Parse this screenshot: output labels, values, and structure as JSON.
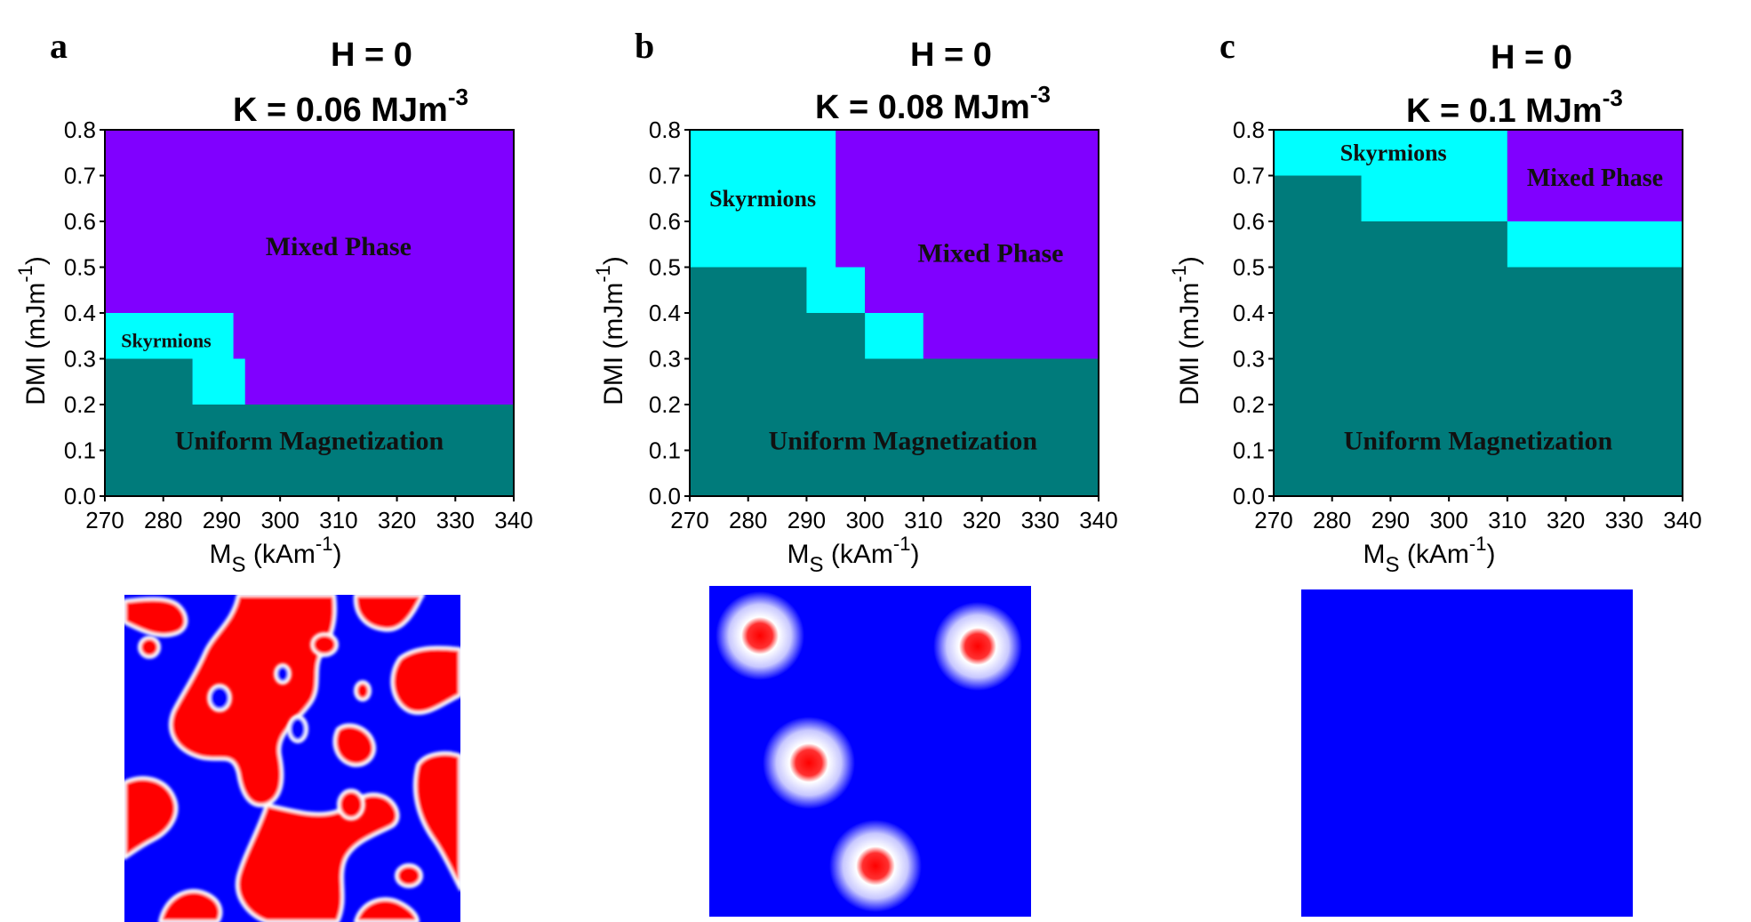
{
  "colors": {
    "uniform": "#007b7b",
    "skyrmions": "#00ffff",
    "mixed": "#8000ff",
    "sim_blue": "#0000ff",
    "sim_red": "#ff0000"
  },
  "chart_data": [
    {
      "type": "heatmap",
      "panel": "a",
      "title_line1": "H = 0",
      "title_line2": "K = 0.06 MJm",
      "title_sup": "-3",
      "xlabel_main": "M",
      "xlabel_sub": "S",
      "xlabel_rest": " (kAm",
      "xlabel_sup": "-1",
      "xlabel_close": ")",
      "ylabel_main": "DMI (mJm",
      "ylabel_sup": "-1",
      "ylabel_close": ")",
      "xlim": [
        270,
        340
      ],
      "ylim": [
        0.0,
        0.8
      ],
      "xticks": [
        "270",
        "280",
        "290",
        "300",
        "310",
        "320",
        "330",
        "340"
      ],
      "yticks": [
        "0.0",
        "0.1",
        "0.2",
        "0.3",
        "0.4",
        "0.5",
        "0.6",
        "0.7",
        "0.8"
      ],
      "regions": [
        {
          "phase": "mixed",
          "x": [
            270,
            340
          ],
          "y": [
            0.2,
            0.8
          ]
        },
        {
          "phase": "uniform",
          "x": [
            270,
            340
          ],
          "y": [
            0.0,
            0.2
          ]
        },
        {
          "phase": "uniform",
          "x": [
            270,
            285
          ],
          "y": [
            0.2,
            0.3
          ]
        },
        {
          "phase": "skyrmions",
          "x": [
            270,
            292
          ],
          "y": [
            0.3,
            0.4
          ]
        },
        {
          "phase": "skyrmions",
          "x": [
            285,
            294
          ],
          "y": [
            0.2,
            0.3
          ]
        }
      ],
      "labels": [
        {
          "text": "Mixed Phase",
          "x": 310,
          "y": 0.54,
          "size": 30
        },
        {
          "text": "Skyrmions",
          "x": 280.5,
          "y": 0.335,
          "size": 22
        },
        {
          "text": "Uniform Magnetization",
          "x": 305,
          "y": 0.115,
          "size": 30
        }
      ],
      "snapshot": "labyrinth"
    },
    {
      "type": "heatmap",
      "panel": "b",
      "title_line1": "H = 0",
      "title_line2": "K = 0.08 MJm",
      "title_sup": "-3",
      "xlabel_main": "M",
      "xlabel_sub": "S",
      "xlabel_rest": " (kAm",
      "xlabel_sup": "-1",
      "xlabel_close": ")",
      "ylabel_main": "DMI (mJm",
      "ylabel_sup": "-1",
      "ylabel_close": ")",
      "xlim": [
        270,
        340
      ],
      "ylim": [
        0.0,
        0.8
      ],
      "xticks": [
        "270",
        "280",
        "290",
        "300",
        "310",
        "320",
        "330",
        "340"
      ],
      "yticks": [
        "0.0",
        "0.1",
        "0.2",
        "0.3",
        "0.4",
        "0.5",
        "0.6",
        "0.7",
        "0.8"
      ],
      "regions": [
        {
          "phase": "uniform",
          "x": [
            270,
            340
          ],
          "y": [
            0.0,
            0.8
          ]
        },
        {
          "phase": "skyrmions",
          "x": [
            270,
            295
          ],
          "y": [
            0.5,
            0.8
          ]
        },
        {
          "phase": "skyrmions",
          "x": [
            290,
            300
          ],
          "y": [
            0.4,
            0.5
          ]
        },
        {
          "phase": "skyrmions",
          "x": [
            300,
            310
          ],
          "y": [
            0.3,
            0.4
          ]
        },
        {
          "phase": "mixed",
          "x": [
            295,
            340
          ],
          "y": [
            0.5,
            0.8
          ]
        },
        {
          "phase": "mixed",
          "x": [
            300,
            340
          ],
          "y": [
            0.4,
            0.5
          ]
        },
        {
          "phase": "mixed",
          "x": [
            310,
            340
          ],
          "y": [
            0.3,
            0.4
          ]
        }
      ],
      "labels": [
        {
          "text": "Mixed Phase",
          "x": 321.5,
          "y": 0.525,
          "size": 30
        },
        {
          "text": "Skyrmions",
          "x": 282.5,
          "y": 0.645,
          "size": 26
        },
        {
          "text": "Uniform Magnetization",
          "x": 306.5,
          "y": 0.115,
          "size": 30
        }
      ],
      "snapshot": "skyrmions"
    },
    {
      "type": "heatmap",
      "panel": "c",
      "title_line1": "H = 0",
      "title_line2": "K = 0.1 MJm",
      "title_sup": "-3",
      "xlabel_main": "M",
      "xlabel_sub": "S",
      "xlabel_rest": " (kAm",
      "xlabel_sup": "-1",
      "xlabel_close": ")",
      "ylabel_main": "DMI (mJm",
      "ylabel_sup": "-1",
      "ylabel_close": ")",
      "xlim": [
        270,
        340
      ],
      "ylim": [
        0.0,
        0.8
      ],
      "xticks": [
        "270",
        "280",
        "290",
        "300",
        "310",
        "320",
        "330",
        "340"
      ],
      "yticks": [
        "0.0",
        "0.1",
        "0.2",
        "0.3",
        "0.4",
        "0.5",
        "0.6",
        "0.7",
        "0.8"
      ],
      "regions": [
        {
          "phase": "uniform",
          "x": [
            270,
            340
          ],
          "y": [
            0.0,
            0.8
          ]
        },
        {
          "phase": "skyrmions",
          "x": [
            270,
            310
          ],
          "y": [
            0.7,
            0.8
          ]
        },
        {
          "phase": "skyrmions",
          "x": [
            285,
            310
          ],
          "y": [
            0.6,
            0.7
          ]
        },
        {
          "phase": "mixed",
          "x": [
            310,
            340
          ],
          "y": [
            0.6,
            0.8
          ]
        },
        {
          "phase": "skyrmions",
          "x": [
            310,
            340
          ],
          "y": [
            0.5,
            0.6
          ]
        }
      ],
      "labels": [
        {
          "text": "Mixed Phase",
          "x": 325,
          "y": 0.69,
          "size": 28
        },
        {
          "text": "Skyrmions",
          "x": 290.5,
          "y": 0.745,
          "size": 26
        },
        {
          "text": "Uniform Magnetization",
          "x": 305,
          "y": 0.115,
          "size": 30
        }
      ],
      "snapshot": "uniform"
    }
  ]
}
